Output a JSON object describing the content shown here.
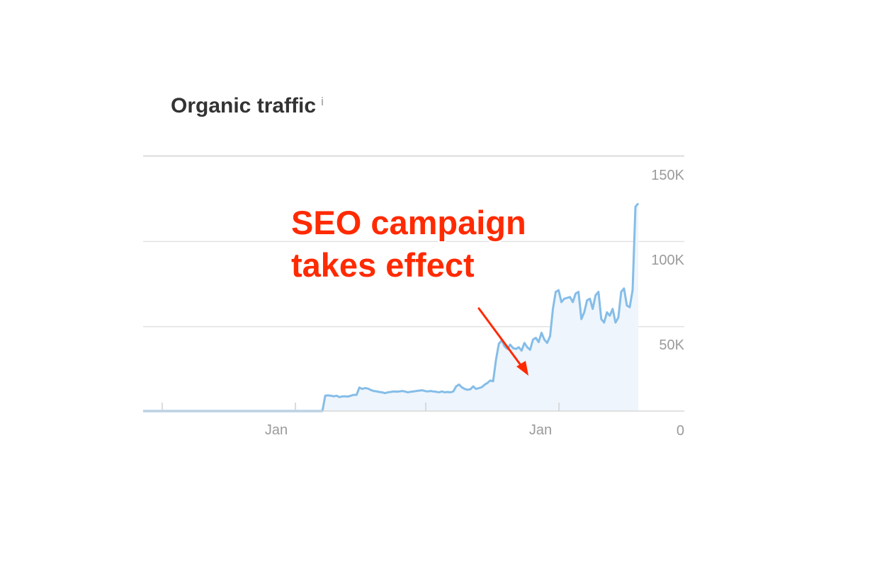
{
  "header": {
    "title": "Organic traffic",
    "info_glyph": "i",
    "info_icon": "info-icon"
  },
  "colors": {
    "line": "#85bde8",
    "area": "#eef5fc",
    "annotation": "#ff2a00",
    "grid": "#e2e2e2",
    "axis_text": "#9a9a9a"
  },
  "chart_data": {
    "type": "area",
    "title": "Organic traffic",
    "xlabel": "",
    "ylabel": "",
    "x_tick_labels": [
      "Jan",
      "Jan"
    ],
    "y_tick_labels": [
      "0",
      "50K",
      "100K",
      "150K"
    ],
    "y_ticks": [
      0,
      50000,
      100000,
      150000
    ],
    "ylim": [
      0,
      150000
    ],
    "y_axis_side": "right",
    "grid": true,
    "legend": "none",
    "series": [
      {
        "values": [
          0,
          0,
          0,
          0,
          0,
          0,
          0,
          0,
          0,
          0,
          0,
          0,
          0,
          0,
          0,
          0,
          0,
          0,
          0,
          0,
          0,
          0,
          0,
          0,
          0,
          0,
          0,
          0,
          0,
          0,
          0,
          0,
          0,
          0,
          0,
          0,
          0,
          0,
          0,
          0,
          0,
          0,
          0,
          0,
          0,
          0,
          0,
          0,
          0,
          0,
          0,
          0,
          0,
          0,
          0,
          0,
          0,
          0,
          0,
          0,
          0,
          0,
          0,
          0,
          9000,
          9200,
          9000,
          8700,
          9000,
          8200,
          8600,
          8700,
          8500,
          9000,
          9500,
          9500,
          13800,
          13000,
          13500,
          13200,
          12400,
          11800,
          11600,
          11200,
          11000,
          10500,
          11000,
          11200,
          11500,
          11400,
          11500,
          11800,
          11500,
          11000,
          11300,
          11500,
          11800,
          12000,
          12200,
          11800,
          11500,
          11800,
          11500,
          11300,
          11000,
          11500,
          11000,
          11200,
          11000,
          11500,
          14500,
          15600,
          14000,
          13000,
          12500,
          12800,
          14500,
          13000,
          13500,
          14000,
          15500,
          16500,
          18000,
          17500,
          30000,
          39500,
          41500,
          38000,
          36500,
          39000,
          37000,
          36500,
          37500,
          35500,
          40000,
          37500,
          36000,
          42000,
          43000,
          40500,
          46000,
          42000,
          40000,
          44000,
          60000,
          70000,
          71000,
          64000,
          66000,
          66500,
          67000,
          64000,
          69000,
          70000,
          54000,
          58000,
          65000,
          66000,
          60000,
          68000,
          70000,
          54000,
          52000,
          58000,
          56000,
          60000,
          52000,
          55000,
          70000,
          72000,
          62000,
          61000,
          71000,
          120000,
          122000
        ]
      }
    ],
    "annotations": [
      {
        "text_lines": [
          "SEO campaign",
          "takes effect"
        ]
      }
    ]
  }
}
